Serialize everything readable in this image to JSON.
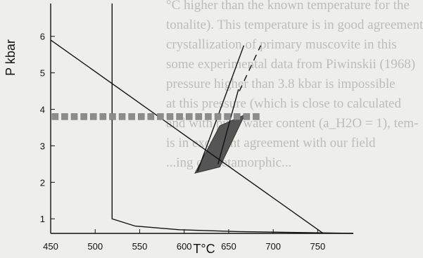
{
  "background_text": [
    "°C higher than the known temperature for the",
    "tonalite). This temperature is in good agreement",
    "crystallization of primary muscovite in this",
    "",
    "some experimental data from Piwinskii (1968)",
    "pressure higher than 3.8 kbar is impossible",
    "at this pressure (which is close to calculated",
    "and with pure water content (a_H2O = 1), tem-",
    "is in excellent agreement with our field",
    "",
    "...ing of metamorphic..."
  ],
  "chart_data": {
    "type": "line",
    "title": "",
    "xlabel": "T°C",
    "ylabel": "P kbar",
    "xlim": [
      450,
      790
    ],
    "ylim": [
      0.6,
      6.9
    ],
    "x_ticks": [
      450,
      500,
      550,
      600,
      650,
      700,
      750
    ],
    "y_ticks": [
      1,
      2,
      3,
      4,
      5,
      6
    ],
    "grid": false,
    "series": [
      {
        "style": "solid",
        "color": "#111111",
        "points": [
          [
            519,
            6.9
          ],
          [
            519,
            1.0
          ],
          [
            545,
            0.8
          ],
          [
            595,
            0.7
          ],
          [
            660,
            0.65
          ],
          [
            790,
            0.6
          ]
        ]
      },
      {
        "style": "solid",
        "color": "#111111",
        "points": [
          [
            450,
            5.9
          ],
          [
            755,
            0.62
          ]
        ]
      },
      {
        "style": "solid",
        "color": "#111111",
        "points": [
          [
            638,
            2.5
          ],
          [
            661,
            4.55
          ]
        ]
      },
      {
        "style": "solid",
        "color": "#111111",
        "points": [
          [
            615,
            2.3
          ],
          [
            667,
            5.75
          ]
        ]
      },
      {
        "style": "dashed",
        "color": "#111111",
        "points": [
          [
            662,
            4.5
          ],
          [
            686,
            5.75
          ]
        ]
      },
      {
        "style": "squares",
        "color": "#888888",
        "pressure": 3.8,
        "x_range": [
          455,
          682
        ]
      }
    ],
    "shaded_region": {
      "color": "#555555",
      "polygon": [
        [
          612,
          2.25
        ],
        [
          640,
          2.42
        ],
        [
          668,
          3.85
        ],
        [
          640,
          3.55
        ]
      ]
    },
    "colors": {
      "axis": "#111111",
      "line": "#111111",
      "marker": "#8c8c8c",
      "region": "#555555"
    }
  }
}
